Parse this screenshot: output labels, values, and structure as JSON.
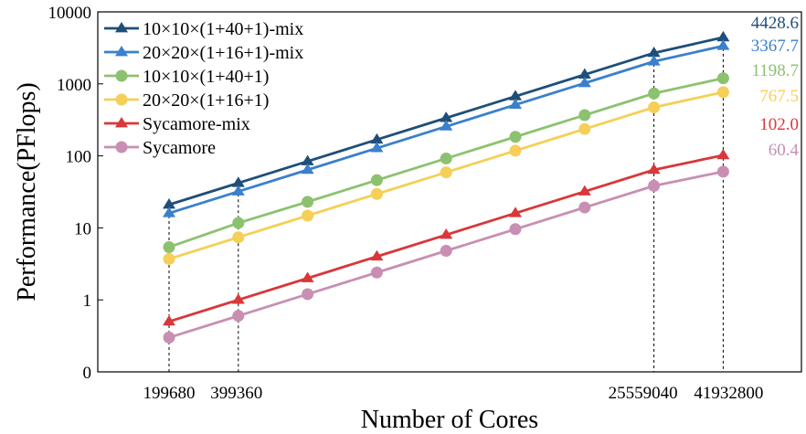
{
  "chart_data": {
    "type": "line",
    "xlabel": "Number of Cores",
    "ylabel": "Performance(PFlops)",
    "y_scale": "log",
    "ylim": [
      0.1,
      10000
    ],
    "y_ticks": [
      {
        "value": 0.1,
        "label": "0"
      },
      {
        "value": 1,
        "label": "1"
      },
      {
        "value": 10,
        "label": "10"
      },
      {
        "value": 100,
        "label": "100"
      },
      {
        "value": 1000,
        "label": "1000"
      },
      {
        "value": 10000,
        "label": "10000"
      }
    ],
    "x_ticks": [
      {
        "index": 0,
        "label": "199680"
      },
      {
        "index": 1,
        "label": "399360"
      },
      {
        "index": 7,
        "label": "25559040"
      },
      {
        "index": 8,
        "label": "41932800"
      }
    ],
    "legend_position": "top-left",
    "series": [
      {
        "name": "10×10×(1+40+1)-mix",
        "color": "#1f4e79",
        "marker": "triangle",
        "values": [
          21,
          42,
          84,
          168,
          336,
          672,
          1344,
          2688,
          4428.6
        ],
        "end_label": "4428.6"
      },
      {
        "name": "20×20×(1+16+1)-mix",
        "color": "#3a80cc",
        "marker": "triangle",
        "values": [
          16,
          32,
          64,
          128,
          256,
          512,
          1024,
          2048,
          3367.7
        ],
        "end_label": "3367.7"
      },
      {
        "name": "10×10×(1+40+1)",
        "color": "#8cc26f",
        "marker": "circle",
        "values": [
          5.4,
          11.7,
          23,
          46,
          92,
          184,
          368,
          736,
          1198.7
        ],
        "end_label": "1198.7"
      },
      {
        "name": "20×20×(1+16+1)",
        "color": "#f5cf57",
        "marker": "circle",
        "values": [
          3.7,
          7.4,
          14.8,
          29.6,
          59,
          118,
          236,
          472,
          767.5
        ],
        "end_label": "767.5"
      },
      {
        "name": "Sycamore-mix",
        "color": "#d9373a",
        "marker": "triangle",
        "values": [
          0.5,
          1.0,
          2.0,
          4.0,
          8.0,
          16,
          32,
          64,
          102.0
        ],
        "end_label": "102.0"
      },
      {
        "name": "Sycamore",
        "color": "#c88fb3",
        "marker": "circle",
        "values": [
          0.3,
          0.6,
          1.2,
          2.4,
          4.8,
          9.6,
          19.2,
          38.4,
          60.4
        ],
        "end_label": "60.4"
      }
    ]
  }
}
